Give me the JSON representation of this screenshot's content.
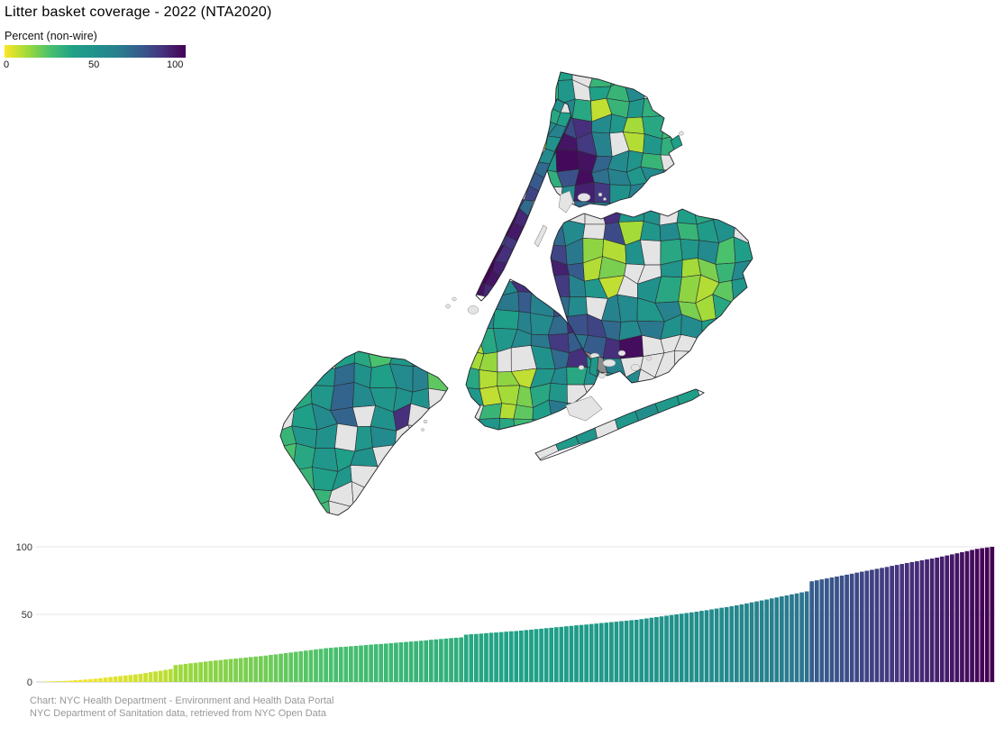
{
  "title": "Litter basket coverage - 2022 (NTA2020)",
  "legend": {
    "label": "Percent (non-wire)",
    "ticks": [
      "0",
      "50",
      "100"
    ],
    "palette": "viridis-reversed",
    "min_color": "#fde725",
    "mid_color": "#21918c",
    "max_color": "#440154"
  },
  "attribution": {
    "line1": "Chart: NYC Health Department - Environment and Health Data Portal",
    "line2": "NYC Department of Sanitation data, retrieved from NYC Open Data"
  },
  "chart_data": [
    {
      "type": "choropleth",
      "title": "Litter basket coverage - 2022 (NTA2020)",
      "legend": "Percent (non-wire)",
      "scale": {
        "min": 0,
        "mid": 50,
        "max": 100,
        "palette": "viridis-reversed"
      },
      "no_data_color": "#e4e4e4",
      "dark_no_data_color": "#8d8d8d",
      "border_color": "#2b2b30",
      "boroughs": [
        {
          "name": "bronx",
          "values": [
            [
              32,
              38,
              null,
              30,
              42,
              28,
              22,
              null
            ],
            [
              30,
              45,
              null,
              38,
              30,
              55,
              null,
              null
            ],
            [
              50,
              58,
              35,
              8,
              30,
              45,
              32,
              null
            ],
            [
              42,
              80,
              88,
              55,
              45,
              12,
              35,
              28
            ],
            [
              38,
              95,
              85,
              60,
              null,
              10,
              45,
              32
            ],
            [
              46,
              98,
              96,
              72,
              55,
              48,
              30,
              null
            ],
            [
              32,
              78,
              97,
              68,
              60,
              45,
              55,
              38
            ],
            [
              null,
              55,
              92,
              85,
              50,
              62,
              35,
              45
            ],
            [
              null,
              null,
              70,
              55,
              88,
              45,
              null,
              null
            ]
          ]
        },
        {
          "name": "manhattan",
          "values": [
            [
              42,
              50,
              null
            ],
            [
              52,
              35,
              38
            ],
            [
              46,
              55,
              60
            ],
            [
              55,
              8,
              50
            ],
            [
              62,
              null,
              55
            ],
            [
              66,
              null,
              70
            ],
            [
              58,
              null,
              76
            ],
            [
              72,
              null,
              82
            ],
            [
              76,
              85,
              70
            ],
            [
              82,
              97,
              90
            ],
            [
              86,
              99,
              94
            ],
            [
              90,
              82,
              86
            ],
            [
              78,
              98,
              88
            ],
            [
              96,
              100,
              92
            ],
            [
              88,
              99,
              95
            ],
            [
              null,
              96,
              90
            ]
          ]
        },
        {
          "name": "queens",
          "values": [
            [
              60,
              null,
              null,
              88,
              45,
              50,
              null,
              40,
              35,
              null,
              48
            ],
            [
              70,
              55,
              null,
              80,
              12,
              45,
              55,
              30,
              42,
              50,
              null
            ],
            [
              82,
              65,
              15,
              10,
              50,
              null,
              35,
              45,
              55,
              25,
              40
            ],
            [
              92,
              75,
              10,
              18,
              null,
              null,
              48,
              12,
              18,
              30,
              55
            ],
            [
              85,
              60,
              45,
              8,
              null,
              50,
              35,
              15,
              10,
              22,
              45
            ],
            [
              70,
              55,
              null,
              60,
              55,
              45,
              60,
              18,
              12,
              35,
              null
            ],
            [
              60,
              78,
              82,
              70,
              55,
              65,
              50,
              55,
              40,
              null,
              null
            ],
            [
              null,
              65,
              75,
              88,
              97,
              null,
              null,
              null,
              null,
              35,
              null
            ],
            [
              null,
              45,
              -1,
              60,
              null,
              null,
              null,
              null,
              42,
              38,
              null
            ],
            [
              null,
              null,
              null,
              50,
              55,
              null,
              null,
              38,
              45,
              null,
              null
            ]
          ]
        },
        {
          "name": "rockaway",
          "values": [
            [
              null,
              42,
              48,
              null,
              45,
              52,
              44,
              40
            ]
          ]
        },
        {
          "name": "brooklyn",
          "values": [
            [
              null,
              null,
              55,
              88,
              70,
              null,
              null,
              null
            ],
            [
              null,
              48,
              65,
              75,
              60,
              80,
              55,
              null
            ],
            [
              12,
              55,
              40,
              60,
              55,
              70,
              90,
              48
            ],
            [
              10,
              35,
              45,
              55,
              65,
              85,
              75,
              55
            ],
            [
              12,
              14,
              null,
              null,
              50,
              70,
              88,
              45
            ],
            [
              35,
              10,
              15,
              8,
              45,
              55,
              35,
              50
            ],
            [
              45,
              8,
              12,
              18,
              35,
              45,
              null,
              null
            ],
            [
              null,
              30,
              10,
              22,
              40,
              65,
              42,
              null
            ],
            [
              null,
              45,
              35,
              28,
              45,
              null,
              null,
              null
            ]
          ]
        },
        {
          "name": "staten-island",
          "values": [
            [
              null,
              null,
              null,
              40,
              35,
              25,
              45,
              55,
              null
            ],
            [
              null,
              null,
              45,
              70,
              50,
              40,
              55,
              60,
              22
            ],
            [
              null,
              35,
              45,
              72,
              55,
              45,
              50,
              50,
              null
            ],
            [
              null,
              40,
              55,
              72,
              null,
              50,
              88,
              null,
              null
            ],
            [
              30,
              45,
              50,
              null,
              45,
              55,
              null,
              null,
              null
            ],
            [
              25,
              35,
              45,
              40,
              50,
              null,
              null,
              null,
              null
            ],
            [
              null,
              30,
              40,
              45,
              null,
              null,
              null,
              null,
              null
            ],
            [
              null,
              35,
              30,
              null,
              null,
              null,
              null,
              null,
              null
            ],
            [
              null,
              null,
              28,
              null,
              null,
              null,
              null,
              null,
              null
            ]
          ]
        }
      ],
      "island_values": {
        "broad_channel": 45,
        "city_island": 40
      }
    },
    {
      "type": "bar",
      "sort": "ascending",
      "bar_count": 190,
      "ylim": [
        0,
        100
      ],
      "yticks": [
        0,
        50,
        100
      ],
      "color_scale": "viridis-reversed",
      "values": [
        0.3,
        0.4,
        0.6,
        0.7,
        0.8,
        1.0,
        1.3,
        1.5,
        1.8,
        2.0,
        2.4,
        2.8,
        3.2,
        3.6,
        4.0,
        4.4,
        4.8,
        5.2,
        5.6,
        6.0,
        6.6,
        7.2,
        7.8,
        8.3,
        8.9,
        9.5,
        12.5,
        12.9,
        13.4,
        13.8,
        14.2,
        14.6,
        15.1,
        15.5,
        15.9,
        16.2,
        16.6,
        17.0,
        17.3,
        17.7,
        18.0,
        18.4,
        18.8,
        19.1,
        19.5,
        20.0,
        20.4,
        20.9,
        21.3,
        21.8,
        22.3,
        22.7,
        23.2,
        23.6,
        24.1,
        24.5,
        25.0,
        25.3,
        25.6,
        25.9,
        26.1,
        26.4,
        26.7,
        27.0,
        27.3,
        27.6,
        27.9,
        28.1,
        28.4,
        28.7,
        29.0,
        29.3,
        29.6,
        29.9,
        30.2,
        30.5,
        30.8,
        31.2,
        31.5,
        31.8,
        32.1,
        32.4,
        32.7,
        33.0,
        35.0,
        35.3,
        35.5,
        35.8,
        36.1,
        36.4,
        36.6,
        36.9,
        37.2,
        37.5,
        37.7,
        38.0,
        38.4,
        38.7,
        39.1,
        39.4,
        39.8,
        40.1,
        40.5,
        40.8,
        41.2,
        41.5,
        41.9,
        42.2,
        42.5,
        42.9,
        43.2,
        43.6,
        43.9,
        44.3,
        44.6,
        45.0,
        45.3,
        45.7,
        46.0,
        46.5,
        47.0,
        47.5,
        48.0,
        48.5,
        49.0,
        49.5,
        50.0,
        50.5,
        51.0,
        51.5,
        52.0,
        52.6,
        53.1,
        53.7,
        54.3,
        54.9,
        55.4,
        56.0,
        56.7,
        57.4,
        58.1,
        58.9,
        59.6,
        60.3,
        61.0,
        61.8,
        62.5,
        63.3,
        64.0,
        64.8,
        65.5,
        66.3,
        67.0,
        74.5,
        75.2,
        75.9,
        76.6,
        77.3,
        78.0,
        78.7,
        79.4,
        80.1,
        80.9,
        81.6,
        82.3,
        83.0,
        83.7,
        84.4,
        85.1,
        85.9,
        86.6,
        87.3,
        88.0,
        88.7,
        89.3,
        90.0,
        90.7,
        91.3,
        92.0,
        92.8,
        93.6,
        94.4,
        95.2,
        96.0,
        96.8,
        97.7,
        98.5,
        99.0,
        99.5,
        100.0
      ]
    }
  ]
}
